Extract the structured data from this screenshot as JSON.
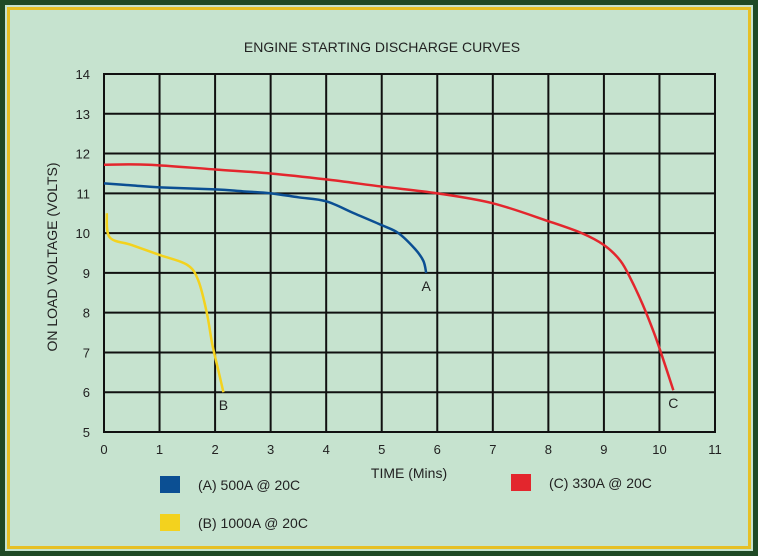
{
  "chart_data": {
    "type": "line",
    "title": "ENGINE STARTING DISCHARGE CURVES",
    "xlabel": "TIME (Mins)",
    "ylabel": "ON LOAD VOLTAGE (VOLTS)",
    "xlim": [
      0,
      11
    ],
    "ylim": [
      5,
      14
    ],
    "xticks": [
      0,
      1,
      2,
      3,
      4,
      5,
      6,
      7,
      8,
      9,
      10,
      11
    ],
    "yticks": [
      5,
      6,
      7,
      8,
      9,
      10,
      11,
      12,
      13,
      14
    ],
    "grid": true,
    "legend_position": "bottom",
    "series": [
      {
        "name": "(A) 500A @ 20C",
        "color": "#0b4f93",
        "end_label": "A",
        "points": [
          [
            0,
            11.25
          ],
          [
            0.5,
            11.2
          ],
          [
            1,
            11.15
          ],
          [
            2,
            11.1
          ],
          [
            2.5,
            11.05
          ],
          [
            3,
            11.0
          ],
          [
            3.5,
            10.9
          ],
          [
            4,
            10.8
          ],
          [
            4.5,
            10.5
          ],
          [
            5,
            10.2
          ],
          [
            5.3,
            10.0
          ],
          [
            5.6,
            9.6
          ],
          [
            5.75,
            9.3
          ],
          [
            5.8,
            9.0
          ]
        ]
      },
      {
        "name": "(B) 1000A @ 20C",
        "color": "#f3d21e",
        "end_label": "B",
        "points": [
          [
            0.05,
            10.5
          ],
          [
            0.1,
            9.9
          ],
          [
            0.5,
            9.7
          ],
          [
            1,
            9.45
          ],
          [
            1.5,
            9.2
          ],
          [
            1.7,
            8.8
          ],
          [
            1.85,
            8.0
          ],
          [
            1.95,
            7.2
          ],
          [
            2.05,
            6.6
          ],
          [
            2.15,
            6.0
          ]
        ]
      },
      {
        "name": "(C) 330A @ 20C",
        "color": "#e3262d",
        "end_label": "C",
        "points": [
          [
            0,
            11.72
          ],
          [
            0.8,
            11.72
          ],
          [
            2,
            11.6
          ],
          [
            3,
            11.5
          ],
          [
            4,
            11.35
          ],
          [
            5,
            11.17
          ],
          [
            6,
            11.0
          ],
          [
            7,
            10.75
          ],
          [
            8,
            10.3
          ],
          [
            8.6,
            10.0
          ],
          [
            9,
            9.7
          ],
          [
            9.3,
            9.3
          ],
          [
            9.5,
            8.8
          ],
          [
            9.7,
            8.2
          ],
          [
            9.9,
            7.5
          ],
          [
            10.05,
            6.9
          ],
          [
            10.25,
            6.05
          ]
        ]
      }
    ]
  }
}
